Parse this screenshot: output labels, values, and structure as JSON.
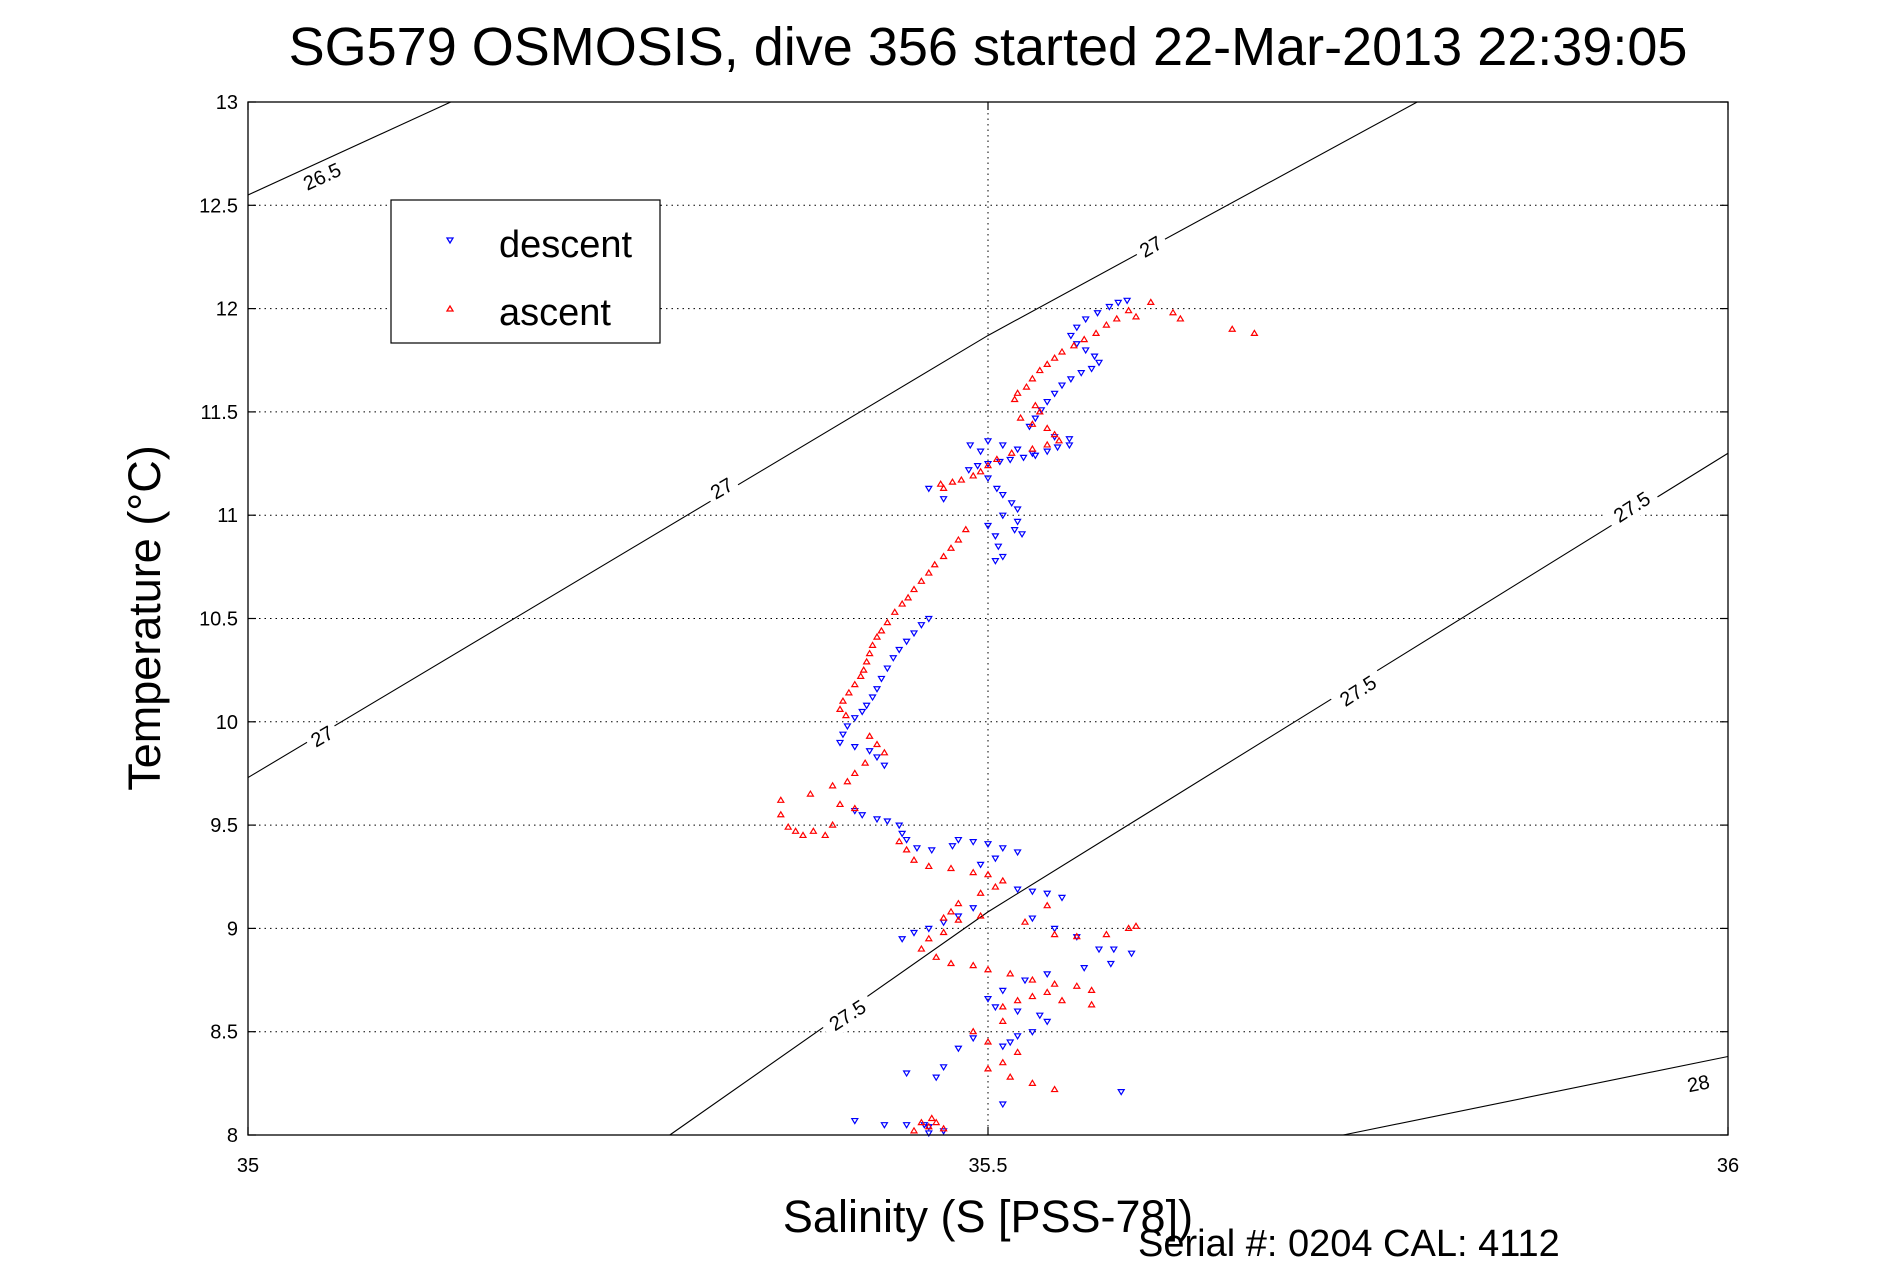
{
  "chart_data": {
    "type": "scatter",
    "title": "SG579 OSMOSIS, dive 356 started 22-Mar-2013 22:39:05",
    "xlabel": "Salinity (S [PSS-78])",
    "ylabel": "Temperature (°C)",
    "footer": "Serial #: 0204  CAL: 4112",
    "xlim": [
      35,
      36
    ],
    "ylim": [
      8,
      13
    ],
    "xticks": [
      "35",
      "35.5",
      "36"
    ],
    "yticks": [
      "8",
      "8.5",
      "9",
      "9.5",
      "10",
      "10.5",
      "11",
      "11.5",
      "12",
      "12.5",
      "13"
    ],
    "grid": true,
    "legend_position": "top-left",
    "density_contours": [
      {
        "level": "26.5",
        "points": [
          [
            35.0,
            12.55
          ],
          [
            35.137,
            13.0
          ]
        ],
        "labels": [
          [
            35.05,
            12.64
          ]
        ]
      },
      {
        "level": "27",
        "points": [
          [
            35.0,
            9.73
          ],
          [
            35.5,
            11.87
          ],
          [
            35.79,
            13.0
          ]
        ],
        "labels": [
          [
            35.05,
            9.93
          ],
          [
            35.32,
            11.13
          ],
          [
            35.61,
            12.3
          ]
        ]
      },
      {
        "level": "27.5",
        "points": [
          [
            35.285,
            8.0
          ],
          [
            35.5,
            9.08
          ],
          [
            36.0,
            11.3
          ]
        ],
        "labels": [
          [
            35.405,
            8.58
          ],
          [
            35.75,
            10.15
          ],
          [
            35.935,
            11.04
          ]
        ]
      },
      {
        "level": "28",
        "points": [
          [
            35.74,
            8.0
          ],
          [
            36.0,
            8.38
          ]
        ],
        "labels": [
          [
            35.98,
            8.25
          ]
        ]
      }
    ],
    "series": [
      {
        "name": "descent",
        "color": "#0000ff",
        "marker": "triangle-down",
        "points": [
          [
            35.594,
            12.04
          ],
          [
            35.588,
            12.03
          ],
          [
            35.582,
            12.01
          ],
          [
            35.574,
            11.98
          ],
          [
            35.566,
            11.95
          ],
          [
            35.56,
            11.91
          ],
          [
            35.556,
            11.87
          ],
          [
            35.56,
            11.83
          ],
          [
            35.566,
            11.8
          ],
          [
            35.572,
            11.77
          ],
          [
            35.575,
            11.74
          ],
          [
            35.57,
            11.71
          ],
          [
            35.563,
            11.69
          ],
          [
            35.556,
            11.66
          ],
          [
            35.55,
            11.63
          ],
          [
            35.545,
            11.59
          ],
          [
            35.54,
            11.55
          ],
          [
            35.536,
            11.51
          ],
          [
            35.532,
            11.47
          ],
          [
            35.528,
            11.43
          ],
          [
            35.545,
            11.38
          ],
          [
            35.555,
            11.37
          ],
          [
            35.555,
            11.34
          ],
          [
            35.547,
            11.33
          ],
          [
            35.54,
            11.31
          ],
          [
            35.532,
            11.29
          ],
          [
            35.524,
            11.28
          ],
          [
            35.515,
            11.27
          ],
          [
            35.508,
            11.26
          ],
          [
            35.5,
            11.25
          ],
          [
            35.493,
            11.24
          ],
          [
            35.487,
            11.22
          ],
          [
            35.495,
            11.31
          ],
          [
            35.488,
            11.34
          ],
          [
            35.5,
            11.36
          ],
          [
            35.51,
            11.34
          ],
          [
            35.52,
            11.32
          ],
          [
            35.53,
            11.3
          ],
          [
            35.5,
            11.18
          ],
          [
            35.506,
            11.13
          ],
          [
            35.51,
            11.1
          ],
          [
            35.516,
            11.06
          ],
          [
            35.52,
            11.03
          ],
          [
            35.51,
            11.0
          ],
          [
            35.52,
            10.97
          ],
          [
            35.5,
            10.95
          ],
          [
            35.518,
            10.93
          ],
          [
            35.523,
            10.91
          ],
          [
            35.505,
            10.9
          ],
          [
            35.507,
            10.85
          ],
          [
            35.51,
            10.8
          ],
          [
            35.505,
            10.78
          ],
          [
            35.46,
            11.13
          ],
          [
            35.47,
            11.08
          ],
          [
            35.46,
            10.5
          ],
          [
            35.455,
            10.47
          ],
          [
            35.45,
            10.43
          ],
          [
            35.445,
            10.39
          ],
          [
            35.44,
            10.35
          ],
          [
            35.436,
            10.31
          ],
          [
            35.432,
            10.26
          ],
          [
            35.428,
            10.21
          ],
          [
            35.425,
            10.16
          ],
          [
            35.422,
            10.12
          ],
          [
            35.418,
            10.08
          ],
          [
            35.415,
            10.05
          ],
          [
            35.41,
            10.02
          ],
          [
            35.405,
            9.98
          ],
          [
            35.402,
            9.94
          ],
          [
            35.4,
            9.9
          ],
          [
            35.41,
            9.88
          ],
          [
            35.42,
            9.86
          ],
          [
            35.425,
            9.83
          ],
          [
            35.43,
            9.79
          ],
          [
            35.41,
            9.57
          ],
          [
            35.415,
            9.55
          ],
          [
            35.425,
            9.53
          ],
          [
            35.432,
            9.52
          ],
          [
            35.44,
            9.5
          ],
          [
            35.442,
            9.46
          ],
          [
            35.445,
            9.43
          ],
          [
            35.452,
            9.39
          ],
          [
            35.462,
            9.38
          ],
          [
            35.476,
            9.4
          ],
          [
            35.48,
            9.43
          ],
          [
            35.49,
            9.42
          ],
          [
            35.5,
            9.41
          ],
          [
            35.51,
            9.39
          ],
          [
            35.52,
            9.37
          ],
          [
            35.505,
            9.34
          ],
          [
            35.495,
            9.31
          ],
          [
            35.52,
            9.19
          ],
          [
            35.53,
            9.18
          ],
          [
            35.54,
            9.17
          ],
          [
            35.55,
            9.15
          ],
          [
            35.49,
            9.1
          ],
          [
            35.48,
            9.06
          ],
          [
            35.47,
            9.03
          ],
          [
            35.46,
            9.0
          ],
          [
            35.45,
            8.98
          ],
          [
            35.442,
            8.95
          ],
          [
            35.53,
            9.05
          ],
          [
            35.545,
            9.0
          ],
          [
            35.56,
            8.96
          ],
          [
            35.575,
            8.9
          ],
          [
            35.585,
            8.9
          ],
          [
            35.597,
            8.88
          ],
          [
            35.583,
            8.83
          ],
          [
            35.565,
            8.81
          ],
          [
            35.54,
            8.78
          ],
          [
            35.525,
            8.75
          ],
          [
            35.51,
            8.7
          ],
          [
            35.5,
            8.66
          ],
          [
            35.505,
            8.62
          ],
          [
            35.52,
            8.6
          ],
          [
            35.535,
            8.58
          ],
          [
            35.54,
            8.55
          ],
          [
            35.53,
            8.5
          ],
          [
            35.52,
            8.48
          ],
          [
            35.515,
            8.45
          ],
          [
            35.51,
            8.43
          ],
          [
            35.49,
            8.47
          ],
          [
            35.48,
            8.42
          ],
          [
            35.47,
            8.33
          ],
          [
            35.445,
            8.3
          ],
          [
            35.465,
            8.28
          ],
          [
            35.59,
            8.21
          ],
          [
            35.51,
            8.15
          ],
          [
            35.41,
            8.07
          ],
          [
            35.43,
            8.05
          ],
          [
            35.445,
            8.05
          ],
          [
            35.457,
            8.05
          ],
          [
            35.46,
            8.04
          ],
          [
            35.47,
            8.02
          ],
          [
            35.46,
            8.01
          ]
        ]
      },
      {
        "name": "ascent",
        "color": "#ff0000",
        "marker": "triangle-up",
        "points": [
          [
            35.61,
            12.03
          ],
          [
            35.625,
            11.98
          ],
          [
            35.63,
            11.95
          ],
          [
            35.665,
            11.9
          ],
          [
            35.68,
            11.88
          ],
          [
            35.6,
            11.96
          ],
          [
            35.595,
            11.99
          ],
          [
            35.587,
            11.95
          ],
          [
            35.58,
            11.92
          ],
          [
            35.573,
            11.88
          ],
          [
            35.565,
            11.85
          ],
          [
            35.558,
            11.82
          ],
          [
            35.55,
            11.79
          ],
          [
            35.545,
            11.76
          ],
          [
            35.54,
            11.73
          ],
          [
            35.535,
            11.7
          ],
          [
            35.53,
            11.66
          ],
          [
            35.526,
            11.62
          ],
          [
            35.52,
            11.59
          ],
          [
            35.518,
            11.56
          ],
          [
            35.532,
            11.53
          ],
          [
            35.535,
            11.5
          ],
          [
            35.522,
            11.47
          ],
          [
            35.53,
            11.44
          ],
          [
            35.54,
            11.42
          ],
          [
            35.545,
            11.39
          ],
          [
            35.548,
            11.36
          ],
          [
            35.54,
            11.34
          ],
          [
            35.53,
            11.32
          ],
          [
            35.516,
            11.3
          ],
          [
            35.506,
            11.27
          ],
          [
            35.5,
            11.24
          ],
          [
            35.495,
            11.21
          ],
          [
            35.49,
            11.19
          ],
          [
            35.482,
            11.17
          ],
          [
            35.476,
            11.16
          ],
          [
            35.468,
            11.15
          ],
          [
            35.47,
            11.13
          ],
          [
            35.485,
            10.93
          ],
          [
            35.48,
            10.88
          ],
          [
            35.475,
            10.84
          ],
          [
            35.47,
            10.8
          ],
          [
            35.464,
            10.76
          ],
          [
            35.46,
            10.72
          ],
          [
            35.455,
            10.68
          ],
          [
            35.45,
            10.64
          ],
          [
            35.446,
            10.6
          ],
          [
            35.442,
            10.57
          ],
          [
            35.437,
            10.53
          ],
          [
            35.432,
            10.48
          ],
          [
            35.428,
            10.44
          ],
          [
            35.425,
            10.41
          ],
          [
            35.422,
            10.37
          ],
          [
            35.42,
            10.33
          ],
          [
            35.418,
            10.29
          ],
          [
            35.416,
            10.25
          ],
          [
            35.414,
            10.22
          ],
          [
            35.41,
            10.18
          ],
          [
            35.406,
            10.14
          ],
          [
            35.402,
            10.1
          ],
          [
            35.4,
            10.06
          ],
          [
            35.404,
            10.03
          ],
          [
            35.42,
            9.93
          ],
          [
            35.425,
            9.89
          ],
          [
            35.43,
            9.85
          ],
          [
            35.417,
            9.8
          ],
          [
            35.41,
            9.75
          ],
          [
            35.405,
            9.71
          ],
          [
            35.395,
            9.69
          ],
          [
            35.38,
            9.65
          ],
          [
            35.36,
            9.62
          ],
          [
            35.4,
            9.6
          ],
          [
            35.41,
            9.58
          ],
          [
            35.36,
            9.55
          ],
          [
            35.395,
            9.5
          ],
          [
            35.382,
            9.47
          ],
          [
            35.375,
            9.45
          ],
          [
            35.37,
            9.47
          ],
          [
            35.365,
            9.49
          ],
          [
            35.39,
            9.45
          ],
          [
            35.44,
            9.42
          ],
          [
            35.445,
            9.38
          ],
          [
            35.45,
            9.33
          ],
          [
            35.46,
            9.3
          ],
          [
            35.475,
            9.29
          ],
          [
            35.49,
            9.27
          ],
          [
            35.5,
            9.26
          ],
          [
            35.51,
            9.23
          ],
          [
            35.505,
            9.2
          ],
          [
            35.495,
            9.17
          ],
          [
            35.48,
            9.12
          ],
          [
            35.475,
            9.08
          ],
          [
            35.47,
            9.05
          ],
          [
            35.48,
            9.04
          ],
          [
            35.495,
            9.06
          ],
          [
            35.47,
            8.98
          ],
          [
            35.46,
            8.95
          ],
          [
            35.455,
            8.9
          ],
          [
            35.465,
            8.86
          ],
          [
            35.475,
            8.83
          ],
          [
            35.49,
            8.82
          ],
          [
            35.5,
            8.8
          ],
          [
            35.515,
            8.78
          ],
          [
            35.53,
            8.75
          ],
          [
            35.545,
            8.73
          ],
          [
            35.56,
            8.72
          ],
          [
            35.57,
            8.7
          ],
          [
            35.54,
            8.69
          ],
          [
            35.53,
            8.67
          ],
          [
            35.52,
            8.65
          ],
          [
            35.55,
            8.65
          ],
          [
            35.57,
            8.63
          ],
          [
            35.51,
            8.62
          ],
          [
            35.545,
            8.97
          ],
          [
            35.56,
            8.96
          ],
          [
            35.58,
            8.97
          ],
          [
            35.595,
            9.0
          ],
          [
            35.6,
            9.01
          ],
          [
            35.54,
            9.11
          ],
          [
            35.525,
            9.03
          ],
          [
            35.51,
            8.55
          ],
          [
            35.49,
            8.5
          ],
          [
            35.5,
            8.45
          ],
          [
            35.52,
            8.4
          ],
          [
            35.51,
            8.35
          ],
          [
            35.5,
            8.32
          ],
          [
            35.515,
            8.28
          ],
          [
            35.53,
            8.25
          ],
          [
            35.545,
            8.22
          ],
          [
            35.455,
            8.06
          ],
          [
            35.46,
            8.04
          ],
          [
            35.465,
            8.06
          ],
          [
            35.47,
            8.03
          ],
          [
            35.45,
            8.02
          ],
          [
            35.462,
            8.08
          ]
        ]
      }
    ]
  }
}
